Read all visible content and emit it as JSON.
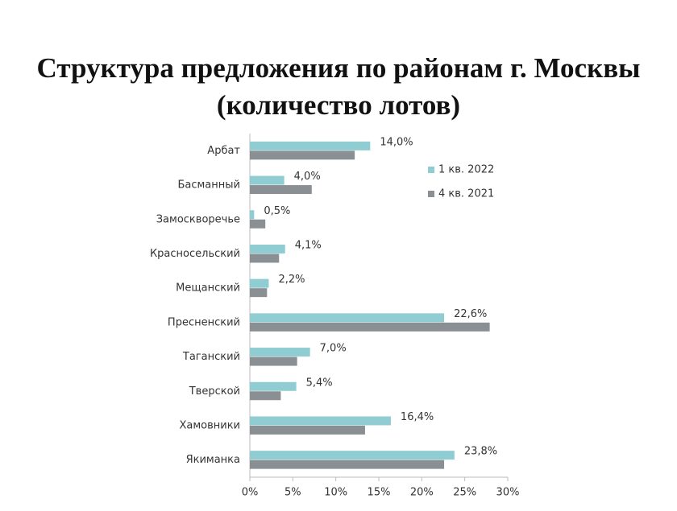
{
  "chart_data": {
    "type": "bar",
    "orientation": "horizontal",
    "title": "Структура предложения по районам г. Москвы",
    "subtitle": "(количество лотов)",
    "categories": [
      "Арбат",
      "Басманный",
      "Замоскворечье",
      "Красносельский",
      "Мещанский",
      "Пресненский",
      "Таганский",
      "Тверской",
      "Хамовники",
      "Якиманка"
    ],
    "series": [
      {
        "name": "1 кв. 2022",
        "color": "#8fcdd3",
        "values": [
          14.0,
          4.0,
          0.5,
          4.1,
          2.2,
          22.6,
          7.0,
          5.4,
          16.4,
          23.8
        ],
        "value_labels": [
          "14,0%",
          "4,0%",
          "0,5%",
          "4,1%",
          "2,2%",
          "22,6%",
          "7,0%",
          "5,4%",
          "16,4%",
          "23,8%"
        ]
      },
      {
        "name": "4 кв. 2021",
        "color": "#8a8f94",
        "values": [
          12.2,
          7.2,
          1.8,
          3.4,
          2.0,
          27.9,
          5.5,
          3.6,
          13.4,
          22.6
        ]
      }
    ],
    "xlim": [
      0,
      30
    ],
    "xticks": [
      {
        "value": 0,
        "label": "0%"
      },
      {
        "value": 5,
        "label": "5%"
      },
      {
        "value": 10,
        "label": "10%"
      },
      {
        "value": 15,
        "label": "15%"
      },
      {
        "value": 20,
        "label": "20%"
      },
      {
        "value": 25,
        "label": "25%"
      },
      {
        "value": 30,
        "label": "30%"
      }
    ],
    "grid": false,
    "legend": "right"
  }
}
